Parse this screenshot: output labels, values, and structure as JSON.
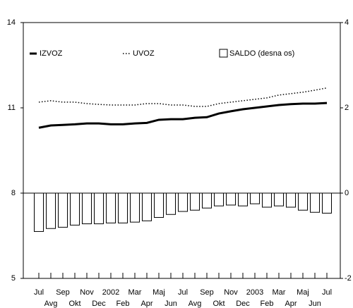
{
  "chart_data": {
    "type": "combo",
    "categories": [
      "Jul",
      "Avg",
      "Sep",
      "Okt",
      "Nov",
      "Dec",
      "2002",
      "Feb",
      "Mar",
      "Apr",
      "Maj",
      "Jun",
      "Jul",
      "Avg",
      "Sep",
      "Okt",
      "Nov",
      "Dec",
      "2003",
      "Feb",
      "Mar",
      "Apr",
      "Maj",
      "Jun",
      "Jul"
    ],
    "series": [
      {
        "name": "IZVOZ",
        "type": "line",
        "line_style": "solid",
        "color": "#000000",
        "values": [
          10.3,
          10.38,
          10.4,
          10.42,
          10.45,
          10.45,
          10.42,
          10.42,
          10.45,
          10.47,
          10.58,
          10.6,
          10.6,
          10.65,
          10.67,
          10.8,
          10.88,
          10.95,
          11.0,
          11.05,
          11.1,
          11.13,
          11.15,
          11.15,
          11.17
        ]
      },
      {
        "name": "UVOZ",
        "type": "line",
        "line_style": "dotted",
        "color": "#000000",
        "values": [
          11.2,
          11.25,
          11.2,
          11.2,
          11.15,
          11.12,
          11.1,
          11.1,
          11.1,
          11.15,
          11.15,
          11.1,
          11.1,
          11.05,
          11.05,
          11.15,
          11.2,
          11.25,
          11.3,
          11.35,
          11.45,
          11.5,
          11.55,
          11.62,
          11.7
        ]
      },
      {
        "name": "SALDO (desna os)",
        "type": "bar",
        "axis": "y2",
        "color": "#ffffff",
        "values": [
          -0.9,
          -0.83,
          -0.8,
          -0.75,
          -0.72,
          -0.72,
          -0.7,
          -0.7,
          -0.68,
          -0.65,
          -0.57,
          -0.5,
          -0.43,
          -0.4,
          -0.35,
          -0.3,
          -0.28,
          -0.3,
          -0.25,
          -0.33,
          -0.3,
          -0.33,
          -0.4,
          -0.45,
          -0.47
        ]
      }
    ],
    "ylim": [
      5,
      14
    ],
    "yticks": [
      5,
      8,
      11,
      14
    ],
    "y2lim": [
      -2,
      4
    ],
    "y2ticks": [
      -2,
      0,
      2,
      4
    ],
    "legend": "top"
  }
}
